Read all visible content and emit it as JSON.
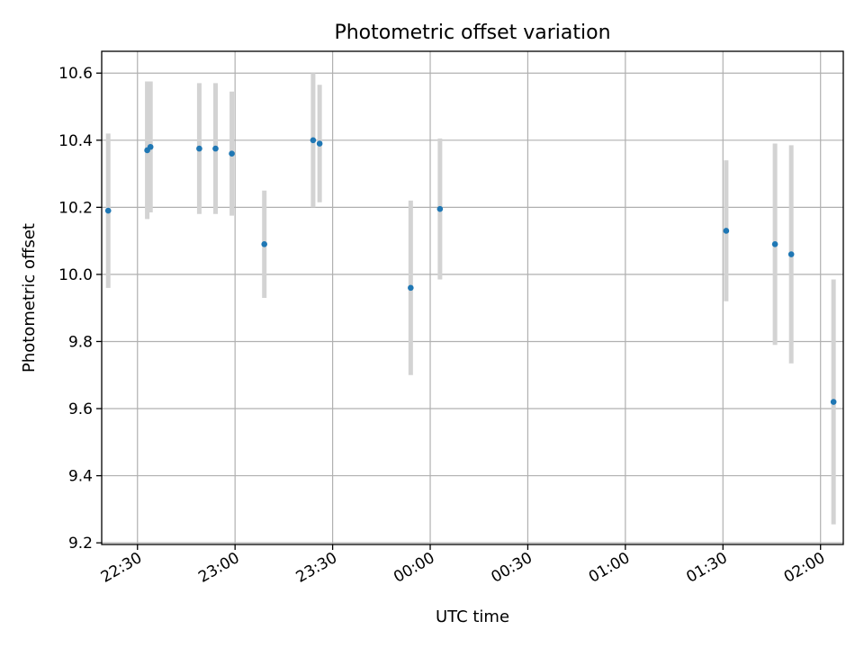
{
  "chart_data": {
    "type": "scatter",
    "title": "Photometric offset variation",
    "xlabel": "UTC time",
    "ylabel": "Photometric offset",
    "x_axis_kind": "time",
    "x_ticks": [
      "22:30",
      "23:00",
      "23:30",
      "00:00",
      "00:30",
      "01:00",
      "01:30",
      "02:00"
    ],
    "y_ticks": [
      "9.2",
      "9.4",
      "9.6",
      "9.8",
      "10.0",
      "10.2",
      "10.4",
      "10.6"
    ],
    "xlim": [
      "22:19",
      "02:07"
    ],
    "ylim": [
      9.195,
      10.665
    ],
    "grid": true,
    "colors": {
      "point": "#1f77b4",
      "error_bar": "#d3d3d3"
    },
    "points": [
      {
        "time": "22:21",
        "y": 10.19,
        "err": 0.23
      },
      {
        "time": "22:33",
        "y": 10.37,
        "err": 0.205
      },
      {
        "time": "22:34",
        "y": 10.38,
        "err": 0.195
      },
      {
        "time": "22:49",
        "y": 10.375,
        "err": 0.195
      },
      {
        "time": "22:54",
        "y": 10.375,
        "err": 0.195
      },
      {
        "time": "22:59",
        "y": 10.36,
        "err": 0.185
      },
      {
        "time": "23:09",
        "y": 10.09,
        "err": 0.16
      },
      {
        "time": "23:24",
        "y": 10.4,
        "err": 0.2
      },
      {
        "time": "23:26",
        "y": 10.39,
        "err": 0.175
      },
      {
        "time": "23:54",
        "y": 9.96,
        "err": 0.26
      },
      {
        "time": "00:03",
        "y": 10.195,
        "err": 0.21
      },
      {
        "time": "01:31",
        "y": 10.13,
        "err": 0.21
      },
      {
        "time": "01:46",
        "y": 10.09,
        "err": 0.3
      },
      {
        "time": "01:51",
        "y": 10.06,
        "err": 0.325
      },
      {
        "time": "02:04",
        "y": 9.62,
        "err": 0.365
      }
    ]
  }
}
